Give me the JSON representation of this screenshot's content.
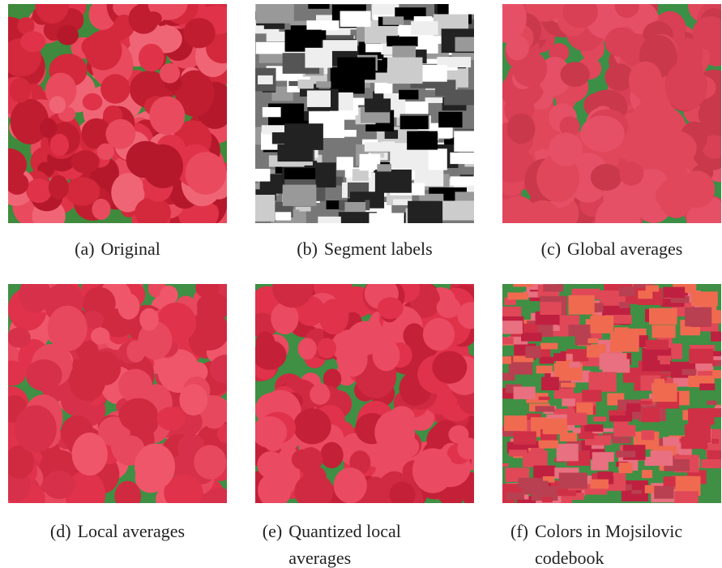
{
  "figure": {
    "subfigures": [
      {
        "label": "(a)",
        "caption": "Original"
      },
      {
        "label": "(b)",
        "caption": "Segment labels"
      },
      {
        "label": "(c)",
        "caption": "Global averages"
      },
      {
        "label": "(d)",
        "caption": "Local averages"
      },
      {
        "label": "(e)",
        "caption": "Quantized local averages"
      },
      {
        "label": "(f)",
        "caption": "Colors in Mojsilovic codebook"
      }
    ]
  }
}
